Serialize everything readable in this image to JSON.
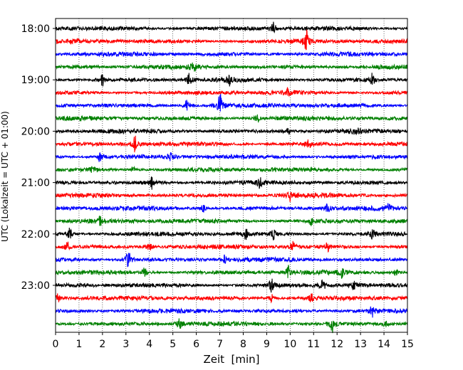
{
  "chart_data": {
    "type": "line",
    "title": "",
    "xlabel": "Zeit  [min]",
    "ylabel": "UTC (Lokalzeit = UTC + 01:00)",
    "xlim": [
      0,
      15
    ],
    "x_ticks": [
      "0",
      "1",
      "2",
      "3",
      "4",
      "5",
      "6",
      "7",
      "8",
      "9",
      "10",
      "11",
      "12",
      "13",
      "14",
      "15"
    ],
    "y_tick_labels": [
      "18:00",
      "19:00",
      "20:00",
      "21:00",
      "22:00",
      "23:00"
    ],
    "grid": "vertical dotted",
    "trace_interval_min": 15,
    "trace_colors": [
      "#000000",
      "#ff0000",
      "#0000ff",
      "#008000"
    ],
    "traces": [
      {
        "start": "18:00",
        "color": "#000000",
        "events": [
          {
            "x": 9.3,
            "amp": 0.9
          }
        ]
      },
      {
        "start": "18:15",
        "color": "#ff0000",
        "events": [
          {
            "x": 10.7,
            "amp": 1.7
          }
        ]
      },
      {
        "start": "18:30",
        "color": "#0000ff",
        "events": []
      },
      {
        "start": "18:45",
        "color": "#008000",
        "events": [
          {
            "x": 5.9,
            "amp": 0.7
          }
        ]
      },
      {
        "start": "19:00",
        "color": "#000000",
        "events": [
          {
            "x": 2.0,
            "amp": 0.9
          },
          {
            "x": 5.7,
            "amp": 0.9
          },
          {
            "x": 7.4,
            "amp": 0.8
          },
          {
            "x": 13.5,
            "amp": 0.9
          }
        ]
      },
      {
        "start": "19:15",
        "color": "#ff0000",
        "events": [
          {
            "x": 9.9,
            "amp": 0.6
          }
        ]
      },
      {
        "start": "19:30",
        "color": "#0000ff",
        "events": [
          {
            "x": 5.6,
            "amp": 1.1
          },
          {
            "x": 7.0,
            "amp": 1.9
          }
        ]
      },
      {
        "start": "19:45",
        "color": "#008000",
        "events": [
          {
            "x": 8.6,
            "amp": 0.6
          }
        ]
      },
      {
        "start": "20:00",
        "color": "#000000",
        "events": [
          {
            "x": 9.9,
            "amp": 0.7
          },
          {
            "x": 12.8,
            "amp": 0.7
          }
        ]
      },
      {
        "start": "20:15",
        "color": "#ff0000",
        "events": [
          {
            "x": 3.4,
            "amp": 1.4
          },
          {
            "x": 10.8,
            "amp": 0.6
          }
        ]
      },
      {
        "start": "20:30",
        "color": "#0000ff",
        "events": [
          {
            "x": 1.9,
            "amp": 1.0
          },
          {
            "x": 4.9,
            "amp": 0.7
          }
        ]
      },
      {
        "start": "20:45",
        "color": "#008000",
        "events": [
          {
            "x": 1.6,
            "amp": 0.5
          },
          {
            "x": 3.3,
            "amp": 0.5
          },
          {
            "x": 9.4,
            "amp": 0.5
          }
        ]
      },
      {
        "start": "21:00",
        "color": "#000000",
        "events": [
          {
            "x": 4.1,
            "amp": 0.9
          },
          {
            "x": 8.7,
            "amp": 0.6
          }
        ]
      },
      {
        "start": "21:15",
        "color": "#ff0000",
        "events": [
          {
            "x": 10.0,
            "amp": 0.7
          }
        ]
      },
      {
        "start": "21:30",
        "color": "#0000ff",
        "events": [
          {
            "x": 6.3,
            "amp": 0.6
          },
          {
            "x": 11.6,
            "amp": 0.6
          },
          {
            "x": 14.2,
            "amp": 0.6
          }
        ]
      },
      {
        "start": "21:45",
        "color": "#008000",
        "events": [
          {
            "x": 1.9,
            "amp": 0.6
          },
          {
            "x": 10.9,
            "amp": 0.5
          }
        ]
      },
      {
        "start": "22:00",
        "color": "#000000",
        "events": [
          {
            "x": 0.6,
            "amp": 0.8
          },
          {
            "x": 8.1,
            "amp": 0.8
          },
          {
            "x": 9.3,
            "amp": 0.7
          },
          {
            "x": 13.5,
            "amp": 0.7
          }
        ]
      },
      {
        "start": "22:15",
        "color": "#ff0000",
        "events": [
          {
            "x": 0.5,
            "amp": 0.9
          },
          {
            "x": 4.0,
            "amp": 0.8
          },
          {
            "x": 10.1,
            "amp": 0.9
          },
          {
            "x": 11.6,
            "amp": 0.6
          }
        ]
      },
      {
        "start": "22:30",
        "color": "#0000ff",
        "events": [
          {
            "x": 3.1,
            "amp": 1.5
          },
          {
            "x": 7.2,
            "amp": 0.6
          }
        ]
      },
      {
        "start": "22:45",
        "color": "#008000",
        "events": [
          {
            "x": 3.8,
            "amp": 0.7
          },
          {
            "x": 9.9,
            "amp": 1.0
          },
          {
            "x": 12.2,
            "amp": 0.6
          },
          {
            "x": 14.5,
            "amp": 0.6
          }
        ]
      },
      {
        "start": "23:00",
        "color": "#000000",
        "events": [
          {
            "x": 9.2,
            "amp": 0.9
          },
          {
            "x": 11.4,
            "amp": 0.8
          },
          {
            "x": 12.7,
            "amp": 0.6
          }
        ]
      },
      {
        "start": "23:15",
        "color": "#ff0000",
        "events": [
          {
            "x": 0.1,
            "amp": 0.6
          },
          {
            "x": 9.2,
            "amp": 0.6
          },
          {
            "x": 10.9,
            "amp": 0.6
          }
        ]
      },
      {
        "start": "23:30",
        "color": "#0000ff",
        "events": [
          {
            "x": 13.5,
            "amp": 0.9
          }
        ]
      },
      {
        "start": "23:45",
        "color": "#008000",
        "events": [
          {
            "x": 5.3,
            "amp": 0.9
          },
          {
            "x": 11.8,
            "amp": 1.3
          },
          {
            "x": 14.1,
            "amp": 0.8
          }
        ]
      }
    ]
  }
}
